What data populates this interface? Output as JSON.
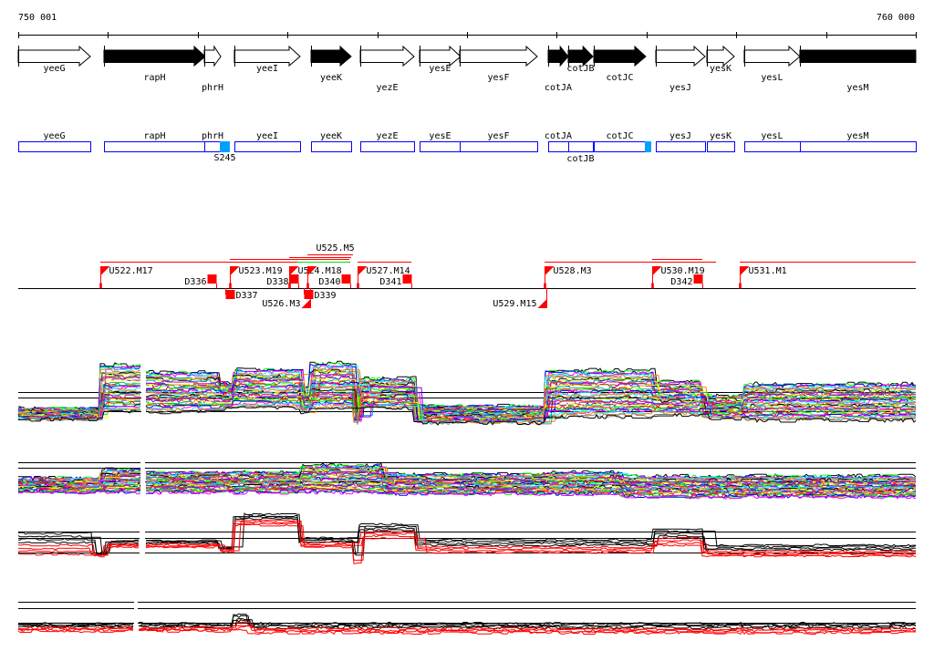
{
  "ruler": {
    "start_label": "750 001",
    "end_label": "760 000",
    "start_bp": 750001,
    "end_bp": 760000,
    "tick_step_bp": 1000
  },
  "genes": [
    {
      "name": "yeeG",
      "start": 750001,
      "end": 750804,
      "strand": "+",
      "filled": false,
      "tier": 0
    },
    {
      "name": "rapH",
      "start": 750956,
      "end": 752084,
      "strand": "+",
      "filled": true,
      "tier": 1
    },
    {
      "name": "phrH",
      "start": 752074,
      "end": 752257,
      "strand": "+",
      "filled": false,
      "tier": 2
    },
    {
      "name": "yeeI",
      "start": 752409,
      "end": 753141,
      "strand": "+",
      "filled": false,
      "tier": 0
    },
    {
      "name": "yeeK",
      "start": 753263,
      "end": 753710,
      "strand": "+",
      "filled": true,
      "tier": 1
    },
    {
      "name": "yezE",
      "start": 753812,
      "end": 754411,
      "strand": "+",
      "filled": false,
      "tier": 2
    },
    {
      "name": "yesE",
      "start": 754472,
      "end": 754929,
      "strand": "+",
      "filled": false,
      "tier": 0
    },
    {
      "name": "yesF",
      "start": 754919,
      "end": 755783,
      "strand": "+",
      "filled": false,
      "tier": 1
    },
    {
      "name": "cotJA",
      "start": 755905,
      "end": 756128,
      "strand": "+",
      "filled": true,
      "tier": 2
    },
    {
      "name": "cotJB",
      "start": 756128,
      "end": 756403,
      "strand": "+",
      "filled": true,
      "tier": 0
    },
    {
      "name": "cotJC",
      "start": 756413,
      "end": 756992,
      "strand": "+",
      "filled": true,
      "tier": 1
    },
    {
      "name": "yesJ",
      "start": 757104,
      "end": 757653,
      "strand": "+",
      "filled": false,
      "tier": 2
    },
    {
      "name": "yesK",
      "start": 757673,
      "end": 757978,
      "strand": "+",
      "filled": false,
      "tier": 0
    },
    {
      "name": "yesL",
      "start": 758089,
      "end": 758709,
      "strand": "+",
      "filled": false,
      "tier": 1
    },
    {
      "name": "yesM",
      "start": 758709,
      "end": 760000,
      "strand": "+",
      "filled": true,
      "tier": 2,
      "truncated": true
    }
  ],
  "features": [
    {
      "label": "S245",
      "start": 752247,
      "end": 752358
    },
    {
      "label": "",
      "start": 756982,
      "end": 757053
    }
  ],
  "transcription_units": {
    "promoters": [
      {
        "label": "U522.M17",
        "pos": 750916,
        "strand": "+"
      },
      {
        "label": "U523.M19",
        "pos": 752358,
        "strand": "+"
      },
      {
        "label": "U524.M18",
        "pos": 753019,
        "strand": "+"
      },
      {
        "label": "U525.M5",
        "pos": 753222,
        "strand": "+"
      },
      {
        "label": "U527.M14",
        "pos": 753781,
        "strand": "+"
      },
      {
        "label": "U528.M3",
        "pos": 755864,
        "strand": "+"
      },
      {
        "label": "U530.M19",
        "pos": 757063,
        "strand": "+"
      },
      {
        "label": "U531.M1",
        "pos": 758039,
        "strand": "+"
      },
      {
        "label": "U526.M3",
        "pos": 753253,
        "strand": "-"
      },
      {
        "label": "U529.M15",
        "pos": 755885,
        "strand": "-"
      }
    ],
    "terminators": [
      {
        "label": "D336",
        "pos": 752206,
        "strand": "+"
      },
      {
        "label": "D338",
        "pos": 753121,
        "strand": "+"
      },
      {
        "label": "D340",
        "pos": 753700,
        "strand": "+"
      },
      {
        "label": "D341",
        "pos": 754381,
        "strand": "+"
      },
      {
        "label": "D342",
        "pos": 757622,
        "strand": "+"
      },
      {
        "label": "D337",
        "pos": 752409,
        "strand": "-"
      },
      {
        "label": "D339",
        "pos": 753283,
        "strand": "-"
      }
    ],
    "transcripts": [
      {
        "start": 750916,
        "end": 753700,
        "color": "#ff0000",
        "tier": 0
      },
      {
        "start": 752358,
        "end": 753690,
        "color": "#ff0000",
        "tier": 1
      },
      {
        "start": 753019,
        "end": 753710,
        "color": "#ff0000",
        "tier": 2
      },
      {
        "start": 753110,
        "end": 753690,
        "color": "#00e000",
        "tier": 0
      },
      {
        "start": 753222,
        "end": 753730,
        "color": "#ff0000",
        "tier": 3
      },
      {
        "start": 753781,
        "end": 754381,
        "color": "#ff0000",
        "tier": 0
      },
      {
        "start": 755864,
        "end": 757775,
        "color": "#ff0000",
        "tier": 0
      },
      {
        "start": 757063,
        "end": 757622,
        "color": "#ff0000",
        "tier": 1
      },
      {
        "start": 758039,
        "end": 760000,
        "color": "#ff0000",
        "tier": 0
      }
    ]
  },
  "colors": {
    "gene_box": "#0000ff",
    "feature": "#00a0ff",
    "tu": "#ff0000",
    "trace_palette": [
      "#ff0000",
      "#00ff00",
      "#0000ff",
      "#ff00ff",
      "#00ffff",
      "#ff8000",
      "#808080",
      "#000000",
      "#c0ff00",
      "#0080ff",
      "#ff0080",
      "#a05020",
      "#8000ff",
      "#ffff00",
      "#00c080"
    ]
  }
}
